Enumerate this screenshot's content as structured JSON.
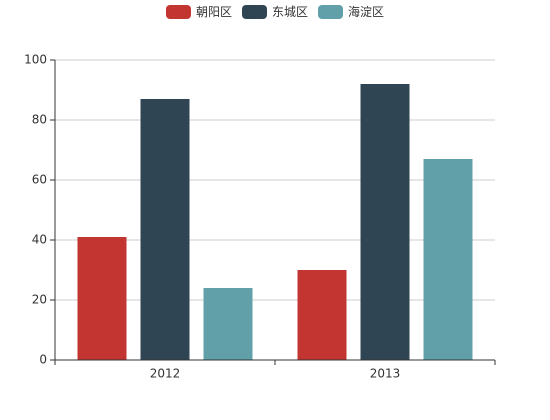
{
  "chart_data": {
    "type": "bar",
    "categories": [
      "2012",
      "2013"
    ],
    "series": [
      {
        "name": "朝阳区",
        "color": "#c23531",
        "values": [
          41,
          30
        ]
      },
      {
        "name": "东城区",
        "color": "#2f4554",
        "values": [
          87,
          92
        ]
      },
      {
        "name": "海淀区",
        "color": "#61a0a8",
        "values": [
          24,
          67
        ]
      }
    ],
    "ylim": [
      0,
      100
    ],
    "yticks": [
      0,
      20,
      40,
      60,
      80,
      100
    ],
    "grid": true,
    "legend": "top"
  }
}
